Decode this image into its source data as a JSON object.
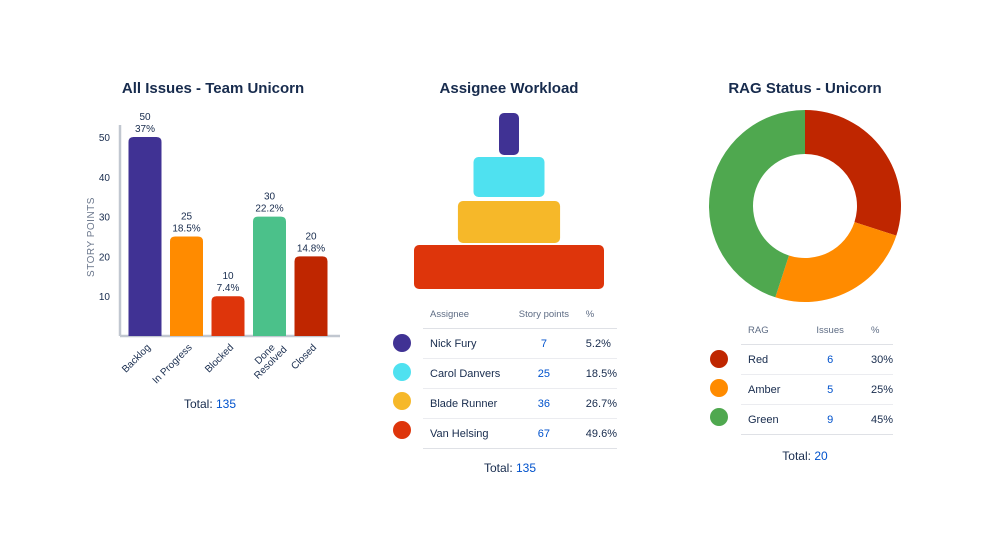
{
  "issues_panel": {
    "title": "All Issues - Team Unicorn",
    "total_label": "Total:",
    "total_value": "135"
  },
  "workload_panel": {
    "title": "Assignee Workload",
    "header_assignee": "Assignee",
    "header_points": "Story points",
    "header_pct": "%",
    "total_label": "Total:",
    "total_value": "135"
  },
  "rag_panel": {
    "title": "RAG Status - Unicorn",
    "header_rag": "RAG",
    "header_issues": "Issues",
    "header_pct": "%",
    "total_label": "Total:",
    "total_value": "20"
  },
  "chart_data": [
    {
      "type": "bar",
      "title": "All Issues - Team Unicorn",
      "ylabel": "STORY POINTS",
      "xlabel": "",
      "ylim": [
        0,
        50
      ],
      "yticks": [
        10,
        20,
        30,
        40,
        50
      ],
      "grid": false,
      "categories": [
        "Backlog",
        "In Progress",
        "Blocked",
        "Done\nResolved",
        "Closed"
      ],
      "values": [
        50,
        25,
        10,
        30,
        20
      ],
      "percent_labels": [
        "37%",
        "18.5%",
        "7.4%",
        "22.2%",
        "14.8%"
      ],
      "colors": [
        "#403294",
        "#ff8b00",
        "#de350b",
        "#4bc18a",
        "#bf2600"
      ]
    },
    {
      "type": "bar",
      "title": "Assignee Workload",
      "orientation": "pyramid",
      "categories": [
        "Nick Fury",
        "Carol Danvers",
        "Blade Runner",
        "Van Helsing"
      ],
      "values": [
        7,
        25,
        36,
        67
      ],
      "percent_labels": [
        "5.2%",
        "18.5%",
        "26.7%",
        "49.6%"
      ],
      "colors": [
        "#403294",
        "#4fe1f0",
        "#f6b829",
        "#de350b"
      ]
    },
    {
      "type": "pie",
      "variant": "donut",
      "title": "RAG Status - Unicorn",
      "categories": [
        "Red",
        "Amber",
        "Green"
      ],
      "values": [
        6,
        5,
        9
      ],
      "percent_labels": [
        "30%",
        "25%",
        "45%"
      ],
      "colors": [
        "#bf2600",
        "#ff8b00",
        "#4fa84f"
      ]
    }
  ]
}
